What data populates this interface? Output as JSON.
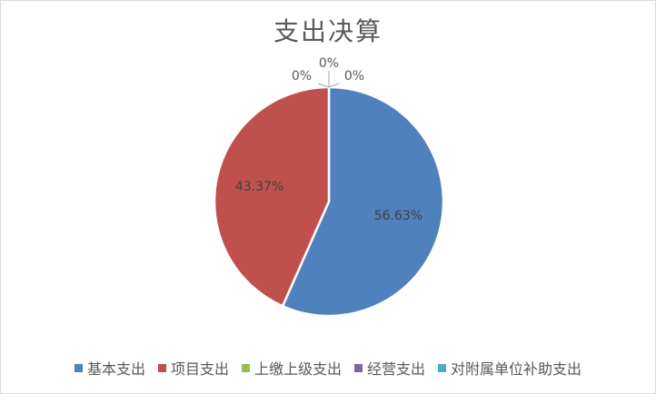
{
  "chart_data": {
    "type": "pie",
    "title": "支出决算",
    "categories": [
      "基本支出",
      "项目支出",
      "上缴上级支出",
      "经营支出",
      "对附属单位补助支出"
    ],
    "values": [
      56.63,
      43.37,
      0,
      0,
      0
    ],
    "data_labels": [
      "56.63%",
      "43.37%",
      "0%",
      "0%",
      "0%"
    ],
    "colors": [
      "#4f81bd",
      "#c0504d",
      "#9bbb59",
      "#8064a2",
      "#4bacc6"
    ],
    "legend_position": "bottom"
  }
}
